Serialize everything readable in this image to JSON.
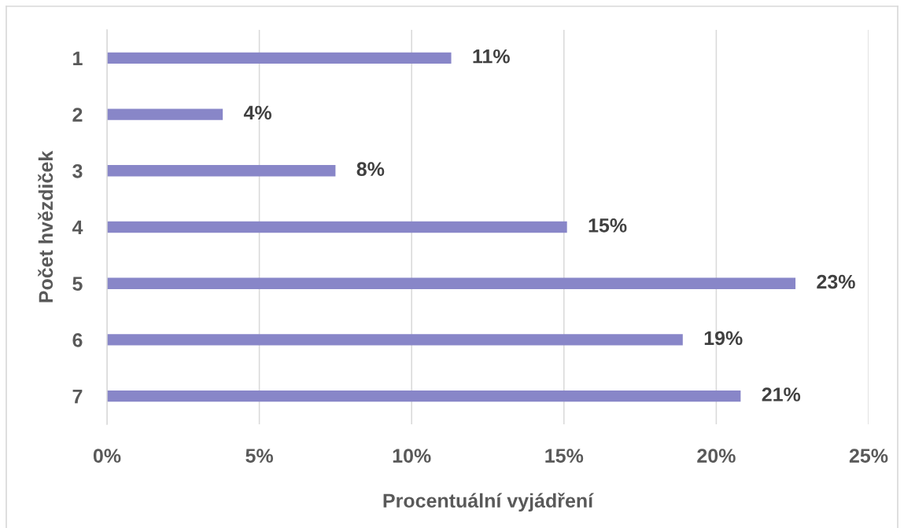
{
  "chart_data": {
    "type": "bar",
    "orientation": "horizontal",
    "xlabel": "Procentuální vyjádření",
    "ylabel": "Počet hvězdiček",
    "categories": [
      "1",
      "2",
      "3",
      "4",
      "5",
      "6",
      "7"
    ],
    "values": [
      11.3,
      3.8,
      7.5,
      15.1,
      22.6,
      18.9,
      20.8
    ],
    "value_labels": [
      "11%",
      "4%",
      "8%",
      "15%",
      "23%",
      "19%",
      "21%"
    ],
    "color": "#8886c8",
    "xlim": [
      0,
      25
    ],
    "xticks": [
      {
        "value": 0,
        "label": "0%"
      },
      {
        "value": 5,
        "label": "5%"
      },
      {
        "value": 10,
        "label": "10%"
      },
      {
        "value": 15,
        "label": "15%"
      },
      {
        "value": 20,
        "label": "20%"
      },
      {
        "value": 25,
        "label": "25%"
      }
    ],
    "grid": "x"
  }
}
